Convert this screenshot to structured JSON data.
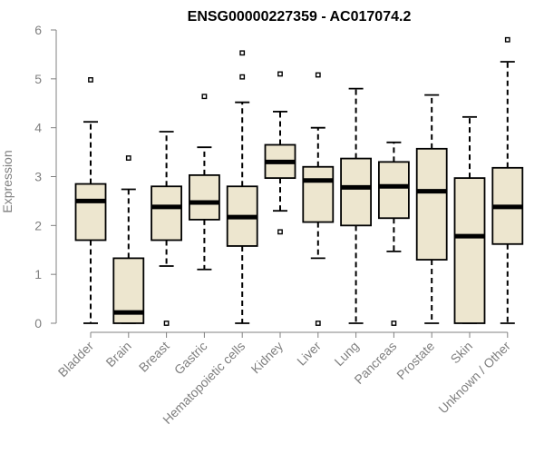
{
  "chart_data": {
    "type": "box",
    "title": "ENSG00000227359 - AC017074.2",
    "xlabel": "",
    "ylabel": "Expression",
    "ylim": [
      0,
      6
    ],
    "yticks": [
      "0",
      "1",
      "2",
      "3",
      "4",
      "5",
      "6"
    ],
    "colors": {
      "box_fill": "#EDE6CF",
      "stroke": "#000000",
      "axis": "#808080"
    },
    "categories": [
      "Bladder",
      "Brain",
      "Breast",
      "Gastric",
      "Hematopoietic cells",
      "Kidney",
      "Liver",
      "Lung",
      "Pancreas",
      "Prostate",
      "Skin",
      "Unknown / Other"
    ],
    "boxes": [
      {
        "name": "Bladder",
        "min": 0,
        "q1": 1.7,
        "median": 2.5,
        "q3": 2.85,
        "max": 4.12,
        "outliers": [
          4.98
        ]
      },
      {
        "name": "Brain",
        "min": 0,
        "q1": 0,
        "median": 0.22,
        "q3": 1.33,
        "max": 2.74,
        "outliers": [
          3.38
        ]
      },
      {
        "name": "Breast",
        "min": 1.17,
        "q1": 1.7,
        "median": 2.38,
        "q3": 2.8,
        "max": 3.92,
        "outliers": [
          0
        ]
      },
      {
        "name": "Gastric",
        "min": 1.1,
        "q1": 2.12,
        "median": 2.47,
        "q3": 3.03,
        "max": 3.6,
        "outliers": [
          4.64
        ]
      },
      {
        "name": "Hematopoietic cells",
        "min": 0,
        "q1": 1.58,
        "median": 2.17,
        "q3": 2.8,
        "max": 4.52,
        "outliers": [
          5.04,
          5.53
        ]
      },
      {
        "name": "Kidney",
        "min": 2.3,
        "q1": 2.97,
        "median": 3.3,
        "q3": 3.65,
        "max": 4.33,
        "outliers": [
          1.87,
          5.1
        ]
      },
      {
        "name": "Liver",
        "min": 1.33,
        "q1": 2.07,
        "median": 2.92,
        "q3": 3.2,
        "max": 4.0,
        "outliers": [
          0,
          5.08
        ]
      },
      {
        "name": "Lung",
        "min": 0,
        "q1": 2.0,
        "median": 2.78,
        "q3": 3.37,
        "max": 4.8,
        "outliers": []
      },
      {
        "name": "Pancreas",
        "min": 1.47,
        "q1": 2.15,
        "median": 2.8,
        "q3": 3.3,
        "max": 3.7,
        "outliers": [
          0
        ]
      },
      {
        "name": "Prostate",
        "min": 0,
        "q1": 1.3,
        "median": 2.7,
        "q3": 3.57,
        "max": 4.67,
        "outliers": []
      },
      {
        "name": "Skin",
        "min": 0,
        "q1": 0,
        "median": 1.78,
        "q3": 2.97,
        "max": 4.22,
        "outliers": []
      },
      {
        "name": "Unknown / Other",
        "min": 0,
        "q1": 1.62,
        "median": 2.38,
        "q3": 3.18,
        "max": 5.35,
        "outliers": [
          5.8
        ]
      }
    ]
  }
}
